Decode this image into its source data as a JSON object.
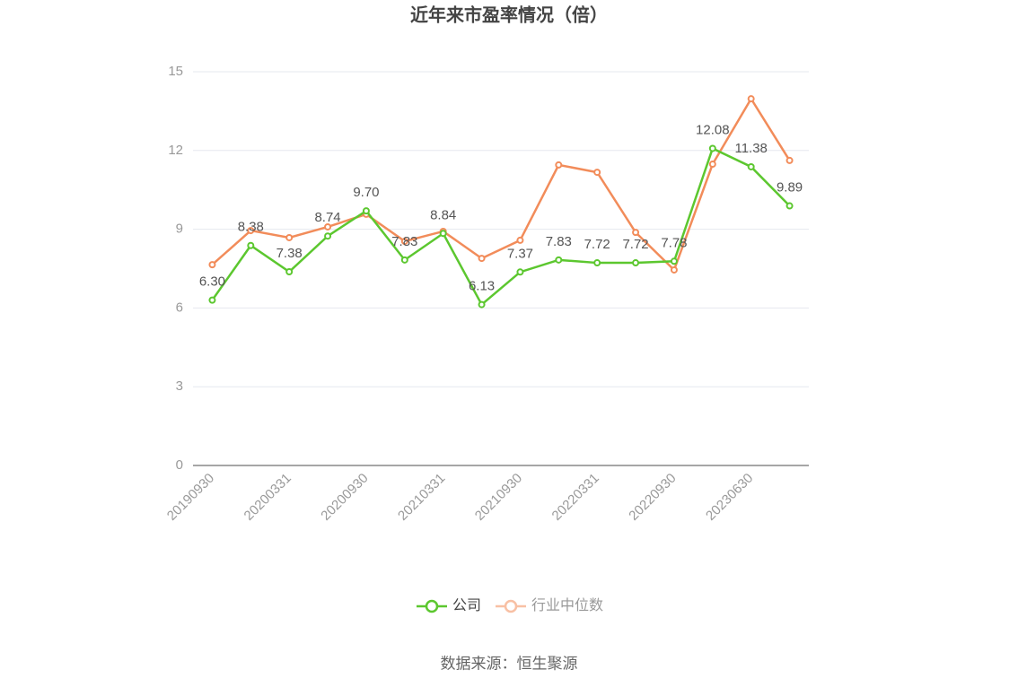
{
  "chart_data": {
    "type": "line",
    "title": "近年来市盈率情况（倍）",
    "categories": [
      "20190930",
      null,
      "20200331",
      null,
      "20200930",
      null,
      "20210331",
      null,
      "20210930",
      null,
      "20220331",
      null,
      "20220930",
      null,
      "20230630",
      null
    ],
    "series": [
      {
        "name": "公司",
        "color": "#5cc72f",
        "values": [
          6.3,
          8.38,
          7.38,
          8.74,
          9.7,
          7.83,
          8.84,
          6.13,
          7.37,
          7.83,
          7.72,
          7.72,
          7.78,
          12.08,
          11.38,
          9.89
        ],
        "value_labels": [
          "6.30",
          "8.38",
          "7.38",
          "8.74",
          "9.70",
          "7.83",
          "8.84",
          "6.13",
          "7.37",
          "7.83",
          "7.72",
          "7.72",
          "7.78",
          "12.08",
          "11.38",
          "9.89"
        ]
      },
      {
        "name": "行业中位数",
        "color": "#f28c5a",
        "values": [
          7.65,
          8.95,
          8.68,
          9.09,
          9.57,
          8.54,
          8.92,
          7.89,
          8.58,
          11.45,
          11.17,
          8.88,
          7.45,
          11.48,
          13.97,
          11.62
        ]
      }
    ],
    "ylim": [
      0,
      15
    ],
    "yticks": [
      0,
      3,
      6,
      9,
      12,
      15
    ],
    "grid": true,
    "legend": "bottom",
    "source": "数据来源：恒生聚源"
  }
}
